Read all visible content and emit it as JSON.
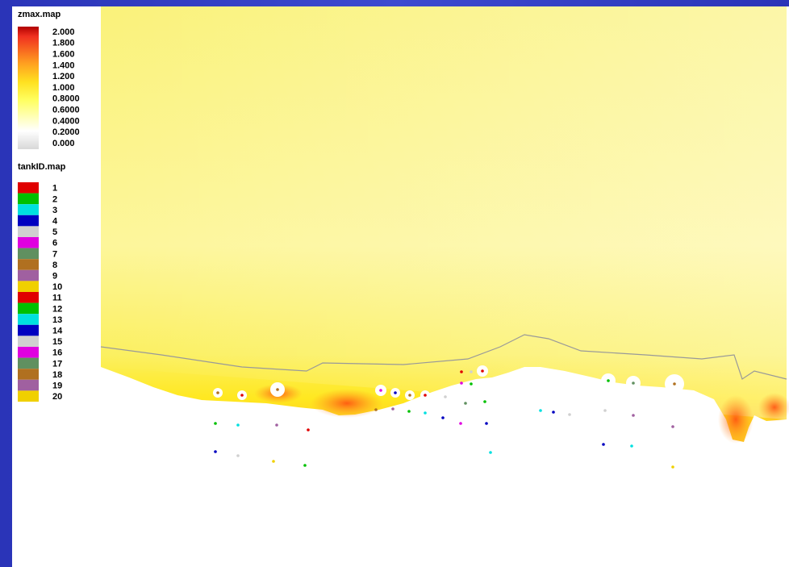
{
  "zmax_legend": {
    "title": "zmax.map",
    "labels": [
      "2.000",
      "1.800",
      "1.600",
      "1.400",
      "1.200",
      "1.000",
      "0.8000",
      "0.6000",
      "0.4000",
      "0.2000",
      "0.000"
    ]
  },
  "tankid_legend": {
    "title": "tankID.map",
    "entries": [
      {
        "label": "1",
        "color": "#e00000"
      },
      {
        "label": "2",
        "color": "#00c000"
      },
      {
        "label": "3",
        "color": "#00e0e0"
      },
      {
        "label": "4",
        "color": "#0000c0"
      },
      {
        "label": "5",
        "color": "#d0d0d0"
      },
      {
        "label": "6",
        "color": "#e000e0"
      },
      {
        "label": "7",
        "color": "#609060"
      },
      {
        "label": "8",
        "color": "#b07020"
      },
      {
        "label": "9",
        "color": "#a060a0"
      },
      {
        "label": "10",
        "color": "#f0d000"
      },
      {
        "label": "11",
        "color": "#e00000"
      },
      {
        "label": "12",
        "color": "#00c000"
      },
      {
        "label": "13",
        "color": "#00e0e0"
      },
      {
        "label": "14",
        "color": "#0000c0"
      },
      {
        "label": "15",
        "color": "#d0d0d0"
      },
      {
        "label": "16",
        "color": "#e000e0"
      },
      {
        "label": "17",
        "color": "#609060"
      },
      {
        "label": "18",
        "color": "#b07020"
      },
      {
        "label": "19",
        "color": "#a060a0"
      },
      {
        "label": "20",
        "color": "#f0d000"
      }
    ]
  }
}
